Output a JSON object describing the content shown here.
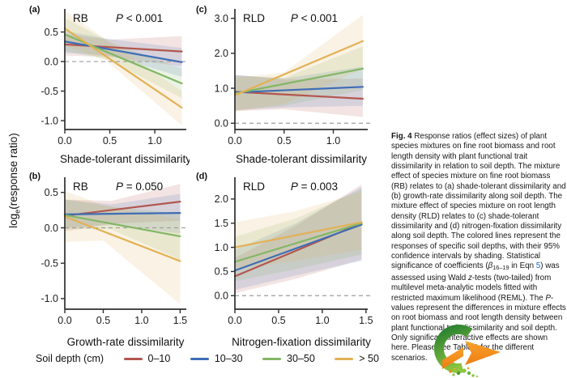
{
  "figure": {
    "y_axis_label": {
      "pre": "log",
      "sub": "e",
      "post": "(response ratio)"
    },
    "legend": {
      "title": "Soil depth (cm)",
      "items": [
        {
          "label": "0–10",
          "color": "#b2574f"
        },
        {
          "label": "10–30",
          "color": "#3e6db5"
        },
        {
          "label": "30–50",
          "color": "#82b765"
        },
        {
          "label": "> 50",
          "color": "#e2b156"
        }
      ]
    }
  },
  "chart_data": [
    {
      "type": "line",
      "id": "a",
      "letter": "(a)",
      "measure": "RB",
      "p_symbol": "P",
      "p_value": "< 0.001",
      "xlabel": "Shade-tolerant dissimilarity",
      "xlim": [
        0,
        1.35
      ],
      "ylim": [
        -1.15,
        0.85
      ],
      "xticks": [
        0,
        0.5,
        1.0
      ],
      "yticks": [
        -1.0,
        -0.5,
        0.0,
        0.5
      ],
      "zero_line": 0,
      "series": [
        {
          "name": "0–10",
          "color": "#b2574f",
          "x": [
            0,
            1.3
          ],
          "y": [
            0.29,
            0.17
          ],
          "band_x": [
            0,
            0.5,
            1.3
          ],
          "band_lower": [
            0.1,
            0.08,
            -0.08
          ],
          "band_upper": [
            0.47,
            0.37,
            0.43
          ]
        },
        {
          "name": "10–30",
          "color": "#3e6db5",
          "x": [
            0,
            1.3
          ],
          "y": [
            0.34,
            -0.01
          ],
          "band_x": [
            0,
            0.5,
            1.3
          ],
          "band_lower": [
            0.15,
            0.1,
            -0.26
          ],
          "band_upper": [
            0.52,
            0.38,
            0.23
          ]
        },
        {
          "name": "30–50",
          "color": "#82b765",
          "x": [
            0,
            1.3
          ],
          "y": [
            0.46,
            -0.37
          ],
          "band_x": [
            0,
            0.5,
            1.3
          ],
          "band_lower": [
            0.18,
            0.02,
            -0.62
          ],
          "band_upper": [
            0.74,
            0.33,
            -0.12
          ]
        },
        {
          "name": "> 50",
          "color": "#e2b156",
          "x": [
            0,
            1.3
          ],
          "y": [
            0.56,
            -0.78
          ],
          "band_x": [
            0,
            0.45,
            1.3
          ],
          "band_lower": [
            0.27,
            0.03,
            -1.08
          ],
          "band_upper": [
            0.86,
            0.38,
            -0.5
          ]
        }
      ]
    },
    {
      "type": "line",
      "id": "c",
      "letter": "(c)",
      "measure": "RLD",
      "p_symbol": "P",
      "p_value": "< 0.001",
      "xlabel": "Shade-tolerant dissimilarity",
      "xlim": [
        0,
        1.35
      ],
      "ylim": [
        -0.18,
        3.2
      ],
      "xticks": [
        0,
        0.5,
        1.0
      ],
      "yticks": [
        0.0,
        1.0,
        2.0,
        3.0
      ],
      "zero_line": 0,
      "series": [
        {
          "name": "0–10",
          "color": "#b2574f",
          "x": [
            0,
            1.3
          ],
          "y": [
            0.9,
            0.7
          ],
          "band_x": [
            0,
            0.5,
            1.3
          ],
          "band_lower": [
            0.35,
            0.4,
            0.18
          ],
          "band_upper": [
            1.38,
            1.25,
            1.28
          ]
        },
        {
          "name": "10–30",
          "color": "#3e6db5",
          "x": [
            0,
            1.3
          ],
          "y": [
            0.88,
            1.04
          ],
          "band_x": [
            0,
            0.5,
            1.3
          ],
          "band_lower": [
            0.37,
            0.45,
            0.5
          ],
          "band_upper": [
            1.38,
            1.28,
            1.62
          ]
        },
        {
          "name": "30–50",
          "color": "#82b765",
          "x": [
            0,
            1.3
          ],
          "y": [
            0.85,
            1.56
          ],
          "band_x": [
            0,
            0.5,
            1.3
          ],
          "band_lower": [
            0.38,
            0.5,
            0.95
          ],
          "band_upper": [
            1.36,
            1.3,
            2.2
          ]
        },
        {
          "name": "> 50",
          "color": "#e2b156",
          "x": [
            0,
            1.3
          ],
          "y": [
            0.8,
            2.35
          ],
          "band_x": [
            0,
            0.5,
            1.3
          ],
          "band_lower": [
            0.33,
            0.55,
            1.55
          ],
          "band_upper": [
            1.3,
            1.45,
            3.1
          ]
        }
      ]
    },
    {
      "type": "line",
      "id": "b",
      "letter": "(b)",
      "measure": "RB",
      "p_symbol": "P",
      "p_value": "= 0.050",
      "xlabel": "Growth-rate dissimilarity",
      "xlim": [
        0,
        1.58
      ],
      "ylim": [
        -1.15,
        0.68
      ],
      "xticks": [
        0,
        0.5,
        1.0,
        1.5
      ],
      "yticks": [
        -1.0,
        -0.5,
        0.0,
        0.5
      ],
      "zero_line": 0,
      "series": [
        {
          "name": "0–10",
          "color": "#b2574f",
          "x": [
            0,
            1.5
          ],
          "y": [
            0.17,
            0.37
          ],
          "band_x": [
            0,
            0.6,
            1.5
          ],
          "band_lower": [
            -0.05,
            0.06,
            0.1
          ],
          "band_upper": [
            0.4,
            0.38,
            0.62
          ]
        },
        {
          "name": "10–30",
          "color": "#3e6db5",
          "x": [
            0,
            1.5
          ],
          "y": [
            0.19,
            0.21
          ],
          "band_x": [
            0,
            0.6,
            1.5
          ],
          "band_lower": [
            0.0,
            0.04,
            -0.08
          ],
          "band_upper": [
            0.4,
            0.33,
            0.48
          ]
        },
        {
          "name": "30–50",
          "color": "#82b765",
          "x": [
            0,
            1.5
          ],
          "y": [
            0.18,
            -0.12
          ],
          "band_x": [
            0,
            0.6,
            1.5
          ],
          "band_lower": [
            -0.02,
            -0.02,
            -0.45
          ],
          "band_upper": [
            0.4,
            0.3,
            0.2
          ]
        },
        {
          "name": "> 50",
          "color": "#e2b156",
          "x": [
            0,
            1.5
          ],
          "y": [
            0.16,
            -0.47
          ],
          "band_x": [
            0,
            0.5,
            1.5
          ],
          "band_lower": [
            -0.2,
            -0.18,
            -1.08
          ],
          "band_upper": [
            0.52,
            0.32,
            0.12
          ]
        }
      ]
    },
    {
      "type": "line",
      "id": "d",
      "letter": "(d)",
      "measure": "RLD",
      "p_symbol": "P",
      "p_value": "= 0.003",
      "xlabel": "Nitrogen-fixation dissimilarity",
      "xlim": [
        0,
        1.52
      ],
      "ylim": [
        -0.28,
        2.4
      ],
      "xticks": [
        0,
        0.5,
        1.0,
        1.5
      ],
      "yticks": [
        0.0,
        0.5,
        1.0,
        1.5,
        2.0
      ],
      "zero_line": 0,
      "series": [
        {
          "name": "0–10",
          "color": "#b2574f",
          "x": [
            0,
            1.45
          ],
          "y": [
            0.4,
            1.5
          ],
          "band_x": [
            0,
            0.7,
            1.45
          ],
          "band_lower": [
            0.05,
            0.35,
            0.75
          ],
          "band_upper": [
            0.78,
            1.45,
            2.3
          ]
        },
        {
          "name": "10–30",
          "color": "#3e6db5",
          "x": [
            0,
            1.45
          ],
          "y": [
            0.52,
            1.47
          ],
          "band_x": [
            0,
            0.7,
            1.45
          ],
          "band_lower": [
            0.12,
            0.42,
            0.72
          ],
          "band_upper": [
            0.95,
            1.5,
            2.25
          ]
        },
        {
          "name": "30–50",
          "color": "#82b765",
          "x": [
            0,
            1.45
          ],
          "y": [
            0.7,
            1.5
          ],
          "band_x": [
            0,
            0.7,
            1.45
          ],
          "band_lower": [
            0.3,
            0.55,
            0.85
          ],
          "band_upper": [
            1.22,
            1.6,
            2.2
          ]
        },
        {
          "name": "> 50",
          "color": "#e2b156",
          "x": [
            0,
            1.45
          ],
          "y": [
            1.0,
            1.52
          ],
          "band_x": [
            0,
            0.7,
            1.45
          ],
          "band_lower": [
            0.55,
            0.72,
            0.95
          ],
          "band_upper": [
            1.52,
            1.75,
            2.15
          ]
        }
      ]
    }
  ],
  "caption": {
    "segments": [
      {
        "style": "bold",
        "text": "Fig. 4"
      },
      {
        "style": "normal",
        "text": "  Response ratios (effect sizes) of plant species mixtures on fine root biomass and root length density with plant functional trait dissimilarity in relation to soil depth. The mixture effect of species mixture on fine root biomass (RB) relates to (a) shade-tolerant dissimilarity and (b) growth-rate dissimilarity along soil depth. The mixture effect of species mixture on root length density (RLD) relates to (c) shade-tolerant dissimilarity and (d) nitrogen-fixation dissimilarity along soil depth. The colored lines represent the responses of specific soil depths, with their 95% confidence intervals by shading. Statistical significance of coefficients ("
      },
      {
        "style": "italic",
        "text": "β"
      },
      {
        "style": "sub",
        "text": "16–19"
      },
      {
        "style": "normal",
        "text": " in Eqn "
      },
      {
        "style": "link",
        "text": "5"
      },
      {
        "style": "normal",
        "text": ") was assessed using Wald "
      },
      {
        "style": "italic",
        "text": "z"
      },
      {
        "style": "normal",
        "text": "-tests (two-tailed) from multilevel meta-analytic models fitted with restricted maximum likelihood (REML). The "
      },
      {
        "style": "italic",
        "text": "P"
      },
      {
        "style": "normal",
        "text": "-values represent the differences in mixture effects on root biomass and root length density between plant functional trait dissimilarity and soil depth. Only significant interactive effects are shown here. Please see Table "
      },
      {
        "style": "link",
        "text": "1"
      },
      {
        "style": "normal",
        "text": " for the different scenarios."
      }
    ]
  },
  "logo": {
    "green_dark": "#17742e",
    "green_light": "#8dc63f",
    "orange_dark": "#ee7d12",
    "orange_light": "#f7a12d"
  }
}
